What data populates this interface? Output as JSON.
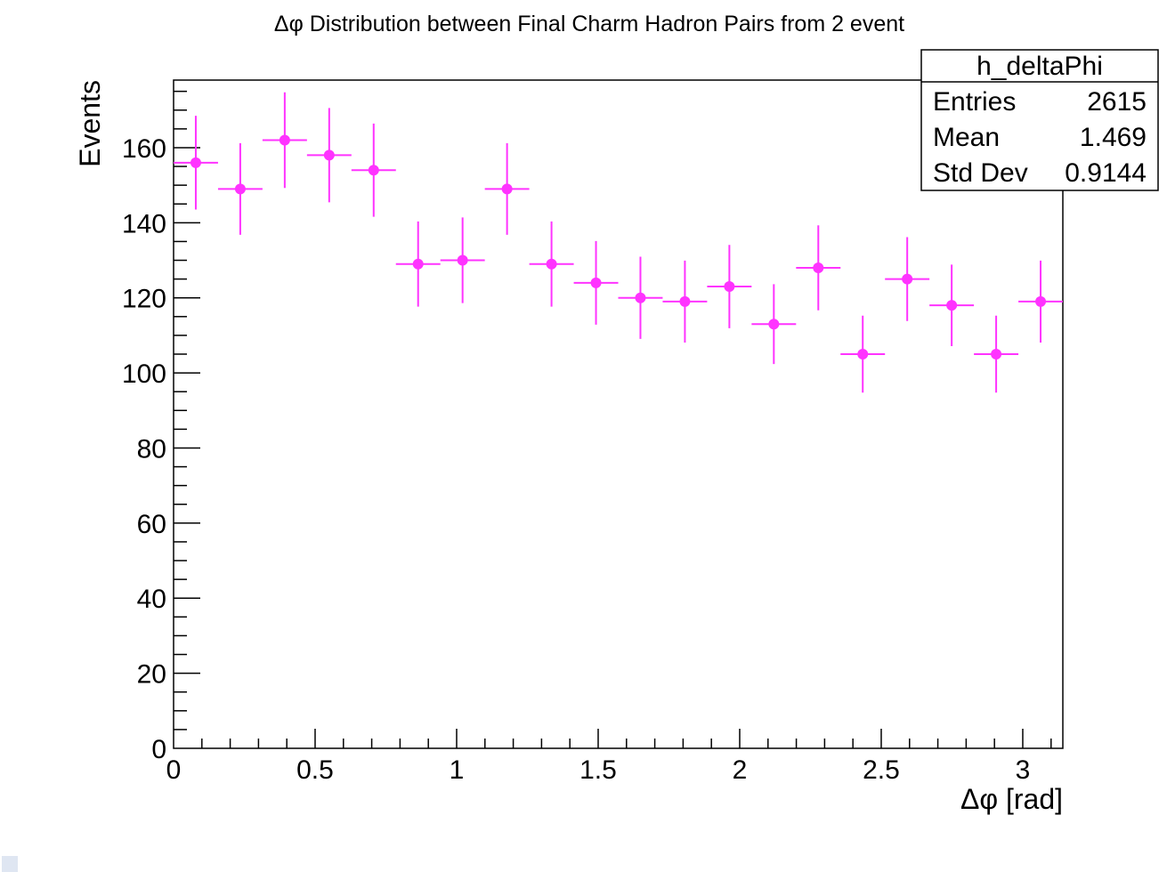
{
  "chart_data": {
    "type": "scatter",
    "title": "Δφ Distribution between Final Charm Hadron Pairs from 2 event",
    "xlabel": "Δφ [rad]",
    "ylabel": "Events",
    "xlim": [
      0,
      3.14159
    ],
    "ylim": [
      0,
      178
    ],
    "x_ticks": [
      "0",
      "0.5",
      "1",
      "1.5",
      "2",
      "2.5",
      "3"
    ],
    "y_ticks": [
      "0",
      "20",
      "40",
      "60",
      "80",
      "100",
      "120",
      "140",
      "160"
    ],
    "bins": 20,
    "marker_color": "#ff33ff",
    "series": [
      {
        "x": [
          0.0785,
          0.2356,
          0.3927,
          0.5498,
          0.7069,
          0.8639,
          1.021,
          1.1781,
          1.3352,
          1.4923,
          1.6493,
          1.8064,
          1.9635,
          2.1206,
          2.2777,
          2.4347,
          2.5918,
          2.7489,
          2.906,
          3.0631
        ],
        "values": [
          156,
          149,
          162,
          158,
          154,
          129,
          130,
          149,
          129,
          124,
          120,
          119,
          123,
          113,
          128,
          105,
          125,
          118,
          105,
          119
        ]
      }
    ],
    "grid": false,
    "legend": "none"
  },
  "stats_box": {
    "name": "h_deltaPhi",
    "rows": [
      {
        "label": "Entries",
        "value": "2615"
      },
      {
        "label": "Mean",
        "value": "1.469"
      },
      {
        "label": "Std Dev",
        "value": "0.9144"
      }
    ],
    "placement": "top-right"
  }
}
